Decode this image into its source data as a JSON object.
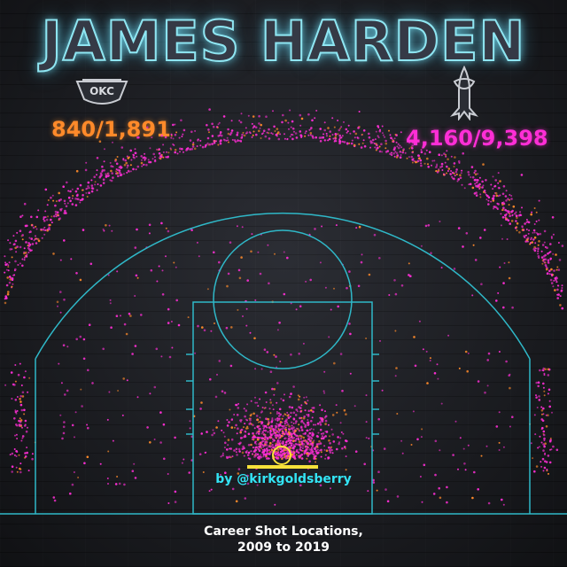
{
  "title": "JAMES HARDEN",
  "teams": {
    "okc": {
      "logo_text": "OKC",
      "shots": "840/1,891",
      "color": "#ff8a2a",
      "logo_icon": "thunder-logo"
    },
    "hou": {
      "shots": "4,160/9,398",
      "color": "#ff2ed6",
      "logo_icon": "rockets-logo"
    }
  },
  "credit": "by @kirkgoldsberry",
  "caption": {
    "line1": "Career Shot Locations,",
    "line2": "2009 to 2019"
  },
  "colors": {
    "court_lines": "#2fb8c8",
    "title_glow": "#8fe6f2",
    "rim": "#f6e23a",
    "background": "#23252b"
  },
  "chart_data": {
    "type": "scatter",
    "title": "JAMES HARDEN",
    "subtitle": "Career Shot Locations, 2009 to 2019",
    "series": [
      {
        "name": "OKC",
        "label": "840/1,891",
        "made": 840,
        "attempts": 1891
      },
      {
        "name": "HOU",
        "label": "4,160/9,398",
        "made": 4160,
        "attempts": 9398
      }
    ],
    "grid": false,
    "legend": "top"
  }
}
